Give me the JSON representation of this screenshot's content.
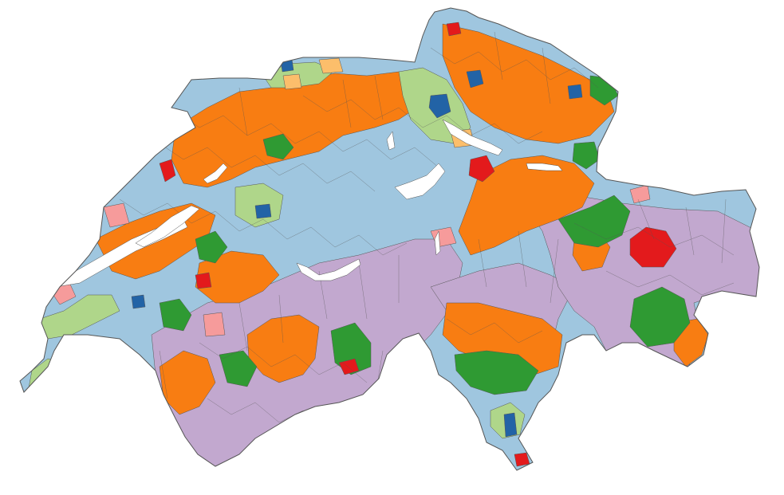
{
  "map": {
    "type": "choropleth",
    "subject": "municipalities",
    "country": "Switzerland",
    "legend_visible": false,
    "title_visible": false,
    "palette": {
      "light_blue": "#9fc6df",
      "orange": "#f87d12",
      "lavender": "#c2a8cf",
      "light_green": "#afd68a",
      "dark_green": "#2f9a33",
      "red": "#e31a1c",
      "pink": "#f69b9b",
      "dark_blue": "#2263a6",
      "peach": "#fcbe6b"
    },
    "boundary_color": "#555555",
    "lake_color": "#ffffff"
  }
}
